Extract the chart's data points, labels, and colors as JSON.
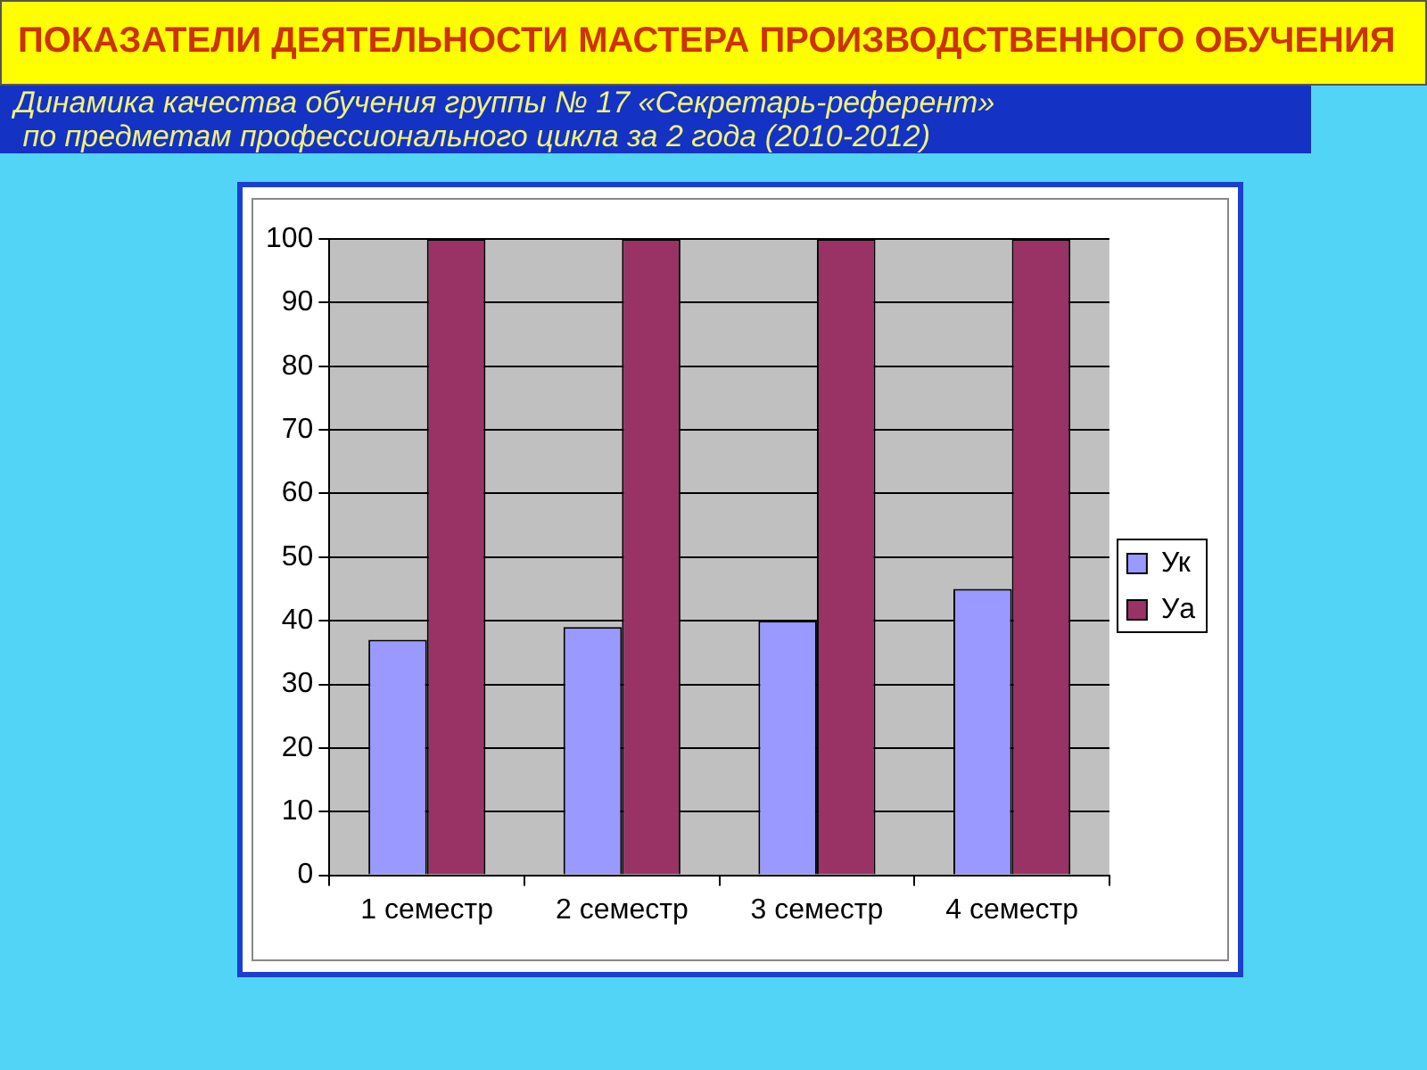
{
  "chart_data": {
    "type": "bar",
    "title": "ПОКАЗАТЕЛИ ДЕЯТЕЛЬНОСТИ МАСТЕРА ПРОИЗВОДСТВЕННОГО ОБУЧЕНИЯ",
    "subtitle": "Динамика качества обучения группы № 17 «Секретарь-референт»\n по предметам профессионального цикла за 2 года (2010-2012)",
    "categories": [
      "1 семестр",
      "2 семестр",
      "3 семестр",
      "4 семестр"
    ],
    "series": [
      {
        "name": "Ук",
        "color": "#9999ff",
        "values": [
          37,
          39,
          40,
          45
        ]
      },
      {
        "name": "Уа",
        "color": "#993366",
        "values": [
          100,
          100,
          100,
          100
        ]
      }
    ],
    "ylim": [
      0,
      100
    ],
    "yticks": [
      0,
      10,
      20,
      30,
      40,
      50,
      60,
      70,
      80,
      90,
      100
    ],
    "grid": "y",
    "legend": "right"
  }
}
